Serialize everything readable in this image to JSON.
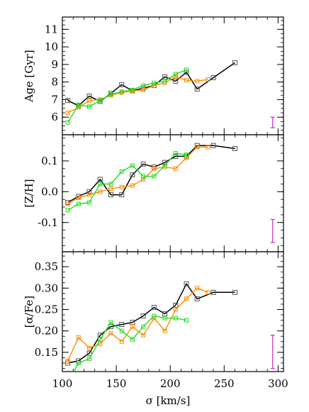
{
  "figure": {
    "xlabel": "σ [km/s]",
    "x_ticks": [
      100,
      150,
      200,
      250,
      300
    ],
    "xlim": [
      100,
      305
    ]
  },
  "colors": {
    "black": "#000000",
    "orange": "#ff8c00",
    "green": "#22dd22",
    "errorbar": "#cc33cc"
  },
  "chart_data": [
    {
      "type": "line",
      "ylabel": "Age [Gyr]",
      "ylim": [
        5.0,
        11.7
      ],
      "y_ticks": [
        6,
        7,
        8,
        9,
        10,
        11
      ],
      "y_tick_labels": [
        "6",
        "7",
        "8",
        "9",
        "10",
        "11"
      ],
      "grid": false,
      "error_bar": {
        "x": 295,
        "y_low": 5.4,
        "y_high": 6.0
      },
      "series": [
        {
          "color": "black",
          "x": [
            105,
            115,
            125,
            135,
            145,
            155,
            165,
            175,
            185,
            195,
            205,
            215,
            225,
            240,
            260
          ],
          "y": [
            6.95,
            6.65,
            7.2,
            6.9,
            7.35,
            7.85,
            7.5,
            7.65,
            7.8,
            8.3,
            8.05,
            8.55,
            7.6,
            8.25,
            9.1
          ]
        },
        {
          "color": "orange",
          "x": [
            105,
            115,
            125,
            135,
            145,
            155,
            165,
            175,
            185,
            195,
            205,
            215,
            225,
            235
          ],
          "y": [
            6.25,
            6.55,
            6.95,
            7.0,
            7.25,
            7.4,
            7.5,
            7.55,
            7.8,
            7.95,
            8.3,
            8.1,
            8.05,
            8.15
          ]
        },
        {
          "color": "green",
          "x": [
            105,
            115,
            125,
            135,
            145,
            155,
            165,
            175,
            185,
            195,
            205,
            215
          ],
          "y": [
            5.7,
            6.7,
            6.6,
            6.95,
            7.3,
            7.45,
            7.55,
            7.8,
            7.95,
            8.05,
            8.45,
            8.7
          ]
        }
      ]
    },
    {
      "type": "line",
      "ylabel": "[Z/H]",
      "ylim": [
        -0.195,
        0.185
      ],
      "y_ticks": [
        -0.1,
        0.0,
        0.1
      ],
      "y_tick_labels": [
        "-0.1",
        "0.0",
        "0.1"
      ],
      "grid": false,
      "error_bar": {
        "x": 295,
        "y_low": -0.165,
        "y_high": -0.09
      },
      "series": [
        {
          "color": "black",
          "x": [
            105,
            115,
            125,
            135,
            145,
            155,
            165,
            175,
            185,
            195,
            205,
            215,
            225,
            240,
            260
          ],
          "y": [
            -0.035,
            -0.015,
            0.0,
            0.04,
            -0.01,
            -0.01,
            0.055,
            0.09,
            0.08,
            0.095,
            0.115,
            0.115,
            0.15,
            0.15,
            0.14
          ]
        },
        {
          "color": "orange",
          "x": [
            105,
            115,
            125,
            135,
            145,
            155,
            165,
            175,
            185,
            195,
            205,
            215,
            225,
            235
          ],
          "y": [
            -0.04,
            -0.02,
            -0.01,
            0.0,
            0.01,
            0.015,
            0.02,
            0.04,
            0.075,
            0.08,
            0.075,
            0.11,
            0.145,
            0.145
          ]
        },
        {
          "color": "green",
          "x": [
            105,
            115,
            125,
            135,
            145,
            155,
            165,
            175,
            185,
            195,
            205,
            215
          ],
          "y": [
            -0.06,
            -0.04,
            -0.035,
            0.025,
            0.025,
            0.065,
            0.085,
            0.05,
            0.05,
            0.085,
            0.125,
            0.12
          ]
        }
      ]
    },
    {
      "type": "line",
      "ylabel": "[α/Fe]",
      "ylim": [
        0.105,
        0.385
      ],
      "y_ticks": [
        0.15,
        0.2,
        0.25,
        0.3,
        0.35
      ],
      "y_tick_labels": [
        "0.15",
        "0.20",
        "0.25",
        "0.30",
        "0.35"
      ],
      "grid": false,
      "error_bar": {
        "x": 295,
        "y_low": 0.112,
        "y_high": 0.19
      },
      "series": [
        {
          "color": "black",
          "x": [
            105,
            115,
            125,
            135,
            145,
            155,
            165,
            175,
            185,
            195,
            205,
            215,
            225,
            240,
            260
          ],
          "y": [
            0.125,
            0.13,
            0.148,
            0.19,
            0.21,
            0.215,
            0.22,
            0.235,
            0.255,
            0.24,
            0.26,
            0.31,
            0.275,
            0.29,
            0.29
          ]
        },
        {
          "color": "orange",
          "x": [
            105,
            115,
            125,
            135,
            145,
            155,
            165,
            175,
            185,
            195,
            205,
            215,
            225,
            235
          ],
          "y": [
            0.13,
            0.185,
            0.16,
            0.17,
            0.195,
            0.175,
            0.21,
            0.19,
            0.23,
            0.2,
            0.25,
            0.275,
            0.3,
            0.29
          ]
        },
        {
          "color": "green",
          "x": [
            105,
            115,
            125,
            135,
            145,
            155,
            165,
            175,
            185,
            195,
            205,
            215
          ],
          "y": [
            0.08,
            0.125,
            0.135,
            0.18,
            0.22,
            0.2,
            0.18,
            0.21,
            0.235,
            0.23,
            0.23,
            0.225
          ]
        }
      ]
    }
  ]
}
